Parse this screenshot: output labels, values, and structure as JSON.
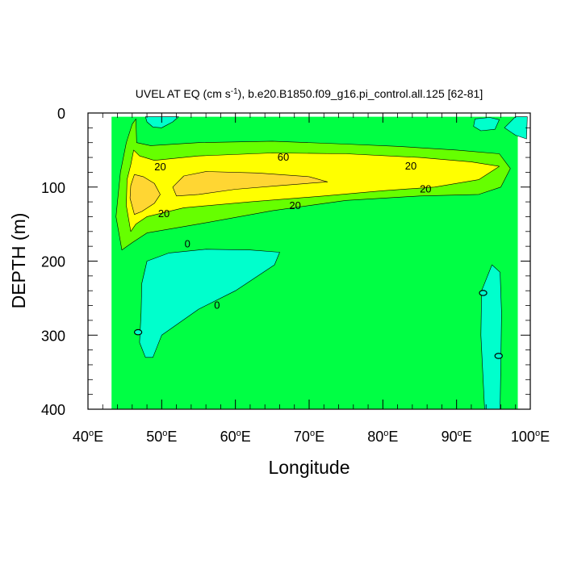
{
  "chart_data": {
    "type": "contour",
    "title": "UVEL AT EQ (cm s⁻¹), b.e20.B1850.f09_g16.pi_control.all.125 [62-81]",
    "xlabel": "Longitude",
    "ylabel": "DEPTH (m)",
    "xlim": [
      40,
      100
    ],
    "ylim": [
      0,
      400
    ],
    "y_inverted": true,
    "x_ticks": [
      40,
      50,
      60,
      70,
      80,
      90,
      100
    ],
    "x_tick_labels": [
      "40°E",
      "50°E",
      "60°E",
      "70°E",
      "80°E",
      "90°E",
      "100°E"
    ],
    "y_ticks": [
      0,
      100,
      200,
      300,
      400
    ],
    "y_tick_labels": [
      "0",
      "100",
      "200",
      "300",
      "400"
    ],
    "data_extent": {
      "lon": [
        43.2,
        98.3
      ],
      "depth": [
        5,
        400
      ]
    },
    "fill_colors": {
      "below_0": "#00ffcc",
      "0_to_20": "#00ff44",
      "20_to_40": "#66ff00",
      "40_to_60": "#ffff00",
      "above_60": "#ffd633"
    },
    "regions": [
      {
        "name": "base-0-20",
        "level": "0_to_20",
        "points": [
          [
            43.2,
            5
          ],
          [
            98.3,
            5
          ],
          [
            98.3,
            400
          ],
          [
            43.2,
            400
          ]
        ]
      },
      {
        "name": "core-20-40",
        "level": "20_to_40",
        "points": [
          [
            44.6,
            185
          ],
          [
            43.8,
            140
          ],
          [
            44.4,
            80
          ],
          [
            45.2,
            40
          ],
          [
            46,
            15
          ],
          [
            46.5,
            8
          ],
          [
            46.6,
            40
          ],
          [
            48.5,
            44
          ],
          [
            55,
            40
          ],
          [
            65,
            38
          ],
          [
            75,
            42
          ],
          [
            82,
            45
          ],
          [
            90,
            50
          ],
          [
            95.8,
            55
          ],
          [
            97.3,
            75
          ],
          [
            96,
            100
          ],
          [
            93,
            110
          ],
          [
            85,
            112
          ],
          [
            75,
            118
          ],
          [
            65,
            132
          ],
          [
            55,
            150
          ],
          [
            48,
            162
          ],
          [
            46,
            175
          ]
        ]
      },
      {
        "name": "core-40-60",
        "level": "40_to_60",
        "points": [
          [
            45.8,
            160
          ],
          [
            45.2,
            125
          ],
          [
            45.3,
            90
          ],
          [
            45.8,
            70
          ],
          [
            46.2,
            50
          ],
          [
            47,
            58
          ],
          [
            49,
            64
          ],
          [
            55,
            58
          ],
          [
            65,
            54
          ],
          [
            75,
            55
          ],
          [
            85,
            60
          ],
          [
            92,
            66
          ],
          [
            95.8,
            72
          ],
          [
            93,
            90
          ],
          [
            87,
            100
          ],
          [
            80,
            105
          ],
          [
            72,
            112
          ],
          [
            62,
            120
          ],
          [
            53,
            128
          ],
          [
            48,
            140
          ],
          [
            46.5,
            150
          ]
        ]
      },
      {
        "name": "core-above-60-west",
        "level": "above_60",
        "points": [
          [
            46.3,
            137
          ],
          [
            45.7,
            115
          ],
          [
            45.8,
            98
          ],
          [
            46.3,
            83
          ],
          [
            47.5,
            86
          ],
          [
            49,
            95
          ],
          [
            49.8,
            110
          ],
          [
            49,
            122
          ],
          [
            47.3,
            133
          ]
        ]
      },
      {
        "name": "core-above-60-central",
        "level": "above_60",
        "points": [
          [
            51.5,
            100
          ],
          [
            53,
            85
          ],
          [
            56,
            79
          ],
          [
            63,
            81
          ],
          [
            70,
            86
          ],
          [
            72.5,
            93
          ],
          [
            66,
            98
          ],
          [
            60,
            103
          ],
          [
            55,
            110
          ],
          [
            52,
            112
          ]
        ]
      },
      {
        "name": "neg-west-deep",
        "level": "below_0",
        "points": [
          [
            47,
            310
          ],
          [
            47.2,
            270
          ],
          [
            47.3,
            230
          ],
          [
            48,
            200
          ],
          [
            51,
            189
          ],
          [
            56,
            184
          ],
          [
            62,
            185
          ],
          [
            66,
            188
          ],
          [
            65.3,
            205
          ],
          [
            60,
            240
          ],
          [
            55,
            265
          ],
          [
            50,
            300
          ],
          [
            48.8,
            330
          ],
          [
            47.8,
            330
          ]
        ]
      },
      {
        "name": "neg-top-west",
        "level": "below_0",
        "points": [
          [
            47.8,
            5
          ],
          [
            52.3,
            5
          ],
          [
            51.5,
            12
          ],
          [
            50,
            20
          ],
          [
            48.8,
            19
          ],
          [
            48,
            12
          ]
        ]
      },
      {
        "name": "neg-top-east-a",
        "level": "below_0",
        "points": [
          [
            92.5,
            8
          ],
          [
            94.5,
            6
          ],
          [
            95.8,
            9
          ],
          [
            95.2,
            22
          ],
          [
            93.3,
            24
          ],
          [
            92.3,
            18
          ]
        ]
      },
      {
        "name": "neg-top-east-b",
        "level": "below_0",
        "points": [
          [
            96.5,
            20
          ],
          [
            98,
            5
          ],
          [
            99.6,
            5
          ],
          [
            99.5,
            35
          ],
          [
            98,
            30
          ]
        ]
      },
      {
        "name": "neg-east-deep",
        "level": "below_0",
        "points": [
          [
            93.8,
            400
          ],
          [
            93.3,
            300
          ],
          [
            93.4,
            240
          ],
          [
            94.8,
            205
          ],
          [
            95.9,
            215
          ],
          [
            96.1,
            270
          ],
          [
            96,
            340
          ],
          [
            95.9,
            400
          ]
        ]
      },
      {
        "name": "neg-ellipse-west",
        "level": "below_0",
        "ellipse": [
          46.8,
          296,
          0.5,
          3.5
        ]
      },
      {
        "name": "neg-ellipse-east-a",
        "level": "below_0",
        "ellipse": [
          93.6,
          243,
          0.5,
          3.5
        ]
      },
      {
        "name": "neg-ellipse-east-b",
        "level": "below_0",
        "ellipse": [
          95.7,
          328,
          0.5,
          3.5
        ]
      }
    ],
    "contour_labels": [
      {
        "text": "20",
        "lon": 49.8,
        "depth": 72
      },
      {
        "text": "60",
        "lon": 66.5,
        "depth": 59
      },
      {
        "text": "20",
        "lon": 83.8,
        "depth": 71
      },
      {
        "text": "20",
        "lon": 85.8,
        "depth": 102
      },
      {
        "text": "20",
        "lon": 68.1,
        "depth": 124
      },
      {
        "text": "20",
        "lon": 50.3,
        "depth": 135
      },
      {
        "text": "0",
        "lon": 53.5,
        "depth": 176
      },
      {
        "text": "0",
        "lon": 57.5,
        "depth": 259
      }
    ]
  }
}
